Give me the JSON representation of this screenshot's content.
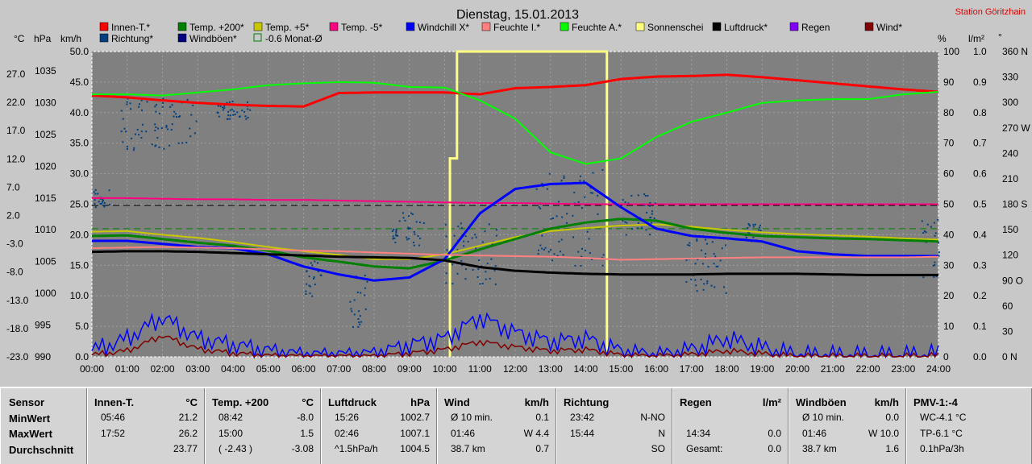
{
  "header": {
    "title": "Dienstag, 15.01.2013",
    "station": "Station Göritzhain"
  },
  "legend": [
    {
      "label": "Innen-T.*",
      "color": "#ff0000"
    },
    {
      "label": "Temp. +200*",
      "color": "#008000"
    },
    {
      "label": "Temp. +5*",
      "color": "#c8c800"
    },
    {
      "label": "Temp. -5*",
      "color": "#ff0080"
    },
    {
      "label": "Windchill X*",
      "color": "#0000ff"
    },
    {
      "label": "Feuchte I.*",
      "color": "#ff8080"
    },
    {
      "label": "Feuchte A.*",
      "color": "#00ff00"
    },
    {
      "label": "Sonnenschei",
      "color": "#ffff80"
    },
    {
      "label": "Luftdruck*",
      "color": "#000000"
    },
    {
      "label": "Regen",
      "color": "#8000ff"
    },
    {
      "label": "Wind*",
      "color": "#800000"
    },
    {
      "label": "Richtung*",
      "color": "#004080"
    },
    {
      "label": "Windböen*",
      "color": "#000080"
    },
    {
      "label": "-0.6 Monat-Ø",
      "color": "#008000",
      "outline": true
    }
  ],
  "axis_units": {
    "temp": "°C",
    "press": "hPa",
    "wind": "km/h",
    "pct": "%",
    "rain": "l/m²",
    "dir": "°"
  },
  "axes": {
    "temp": [
      "27.0",
      "22.0",
      "17.0",
      "12.0",
      "7.0",
      "2.0",
      "-3.0",
      "-8.0",
      "-13.0",
      "-18.0",
      "-23.0"
    ],
    "press": [
      "1035",
      "1030",
      "1025",
      "1020",
      "1015",
      "1010",
      "1005",
      "1000",
      "995",
      "990"
    ],
    "wind": [
      "50.0",
      "45.0",
      "40.0",
      "35.0",
      "30.0",
      "25.0",
      "20.0",
      "15.0",
      "10.0",
      "5.0",
      "0.0"
    ],
    "pct": [
      "100",
      "90",
      "80",
      "70",
      "60",
      "50",
      "40",
      "30",
      "20",
      "10",
      "0"
    ],
    "rain": [
      "1.0",
      "0.9",
      "0.8",
      "0.7",
      "0.6",
      "0.5",
      "0.4",
      "0.3",
      "0.2",
      "0.1",
      "0.0"
    ],
    "dir": [
      "360 N",
      "330",
      "300",
      "270 W",
      "240",
      "210",
      "180 S",
      "150",
      "120",
      "90 O",
      "60",
      "30",
      "0 N"
    ],
    "time": [
      "00:00",
      "01:00",
      "02:00",
      "03:00",
      "04:00",
      "05:00",
      "06:00",
      "07:00",
      "08:00",
      "09:00",
      "10:00",
      "11:00",
      "12:00",
      "13:00",
      "14:00",
      "15:00",
      "16:00",
      "17:00",
      "18:00",
      "19:00",
      "20:00",
      "21:00",
      "22:00",
      "23:00",
      "24:00"
    ]
  },
  "chart_data": {
    "type": "line",
    "title": "Dienstag, 15.01.2013",
    "x_hours": [
      0,
      1,
      2,
      3,
      4,
      5,
      6,
      7,
      8,
      9,
      10,
      11,
      12,
      13,
      14,
      15,
      16,
      17,
      18,
      19,
      20,
      21,
      22,
      23,
      24
    ],
    "ylim_wind_kmh": [
      0,
      50
    ],
    "series": [
      {
        "name": "Innen-T.*",
        "color": "#ff0000",
        "width": 3,
        "values": [
          42.8,
          42.5,
          42.0,
          41.6,
          41.3,
          41.1,
          41.0,
          43.2,
          43.3,
          43.3,
          43.3,
          43.0,
          44.0,
          44.2,
          44.5,
          45.5,
          45.9,
          46.0,
          46.2,
          45.8,
          45.3,
          44.8,
          44.3,
          43.8,
          43.4
        ]
      },
      {
        "name": "Feuchte A.*",
        "color": "#00ff00",
        "width": 2,
        "values": [
          43.0,
          43.0,
          42.8,
          43.3,
          43.8,
          44.5,
          44.8,
          45.0,
          44.9,
          44.2,
          44.1,
          42.0,
          39.0,
          33.5,
          31.6,
          32.5,
          36.0,
          38.5,
          40.0,
          41.6,
          42.0,
          42.2,
          42.2,
          43.0,
          43.4
        ]
      },
      {
        "name": "Temp. -5*",
        "color": "#ff0080",
        "width": 2,
        "values": [
          26.0,
          26.0,
          25.9,
          25.8,
          25.8,
          25.7,
          25.7,
          25.6,
          25.5,
          25.4,
          25.3,
          25.2,
          25.2,
          25.1,
          25.0,
          25.0,
          25.0,
          25.0,
          25.0,
          25.0,
          25.0,
          25.0,
          25.0,
          25.0,
          25.0
        ]
      },
      {
        "name": "Temp. +5*",
        "color": "#c8c800",
        "width": 2,
        "values": [
          20.5,
          20.6,
          20.0,
          19.5,
          18.8,
          18.0,
          17.3,
          16.7,
          16.0,
          16.0,
          16.8,
          18.2,
          19.6,
          20.6,
          21.1,
          21.5,
          21.7,
          21.3,
          20.8,
          20.4,
          20.1,
          19.9,
          19.7,
          19.4,
          19.2
        ]
      },
      {
        "name": "Temp. +200*",
        "color": "#008000",
        "width": 3,
        "values": [
          19.8,
          19.9,
          19.3,
          18.7,
          18.2,
          17.4,
          16.3,
          15.6,
          14.8,
          14.5,
          15.8,
          17.6,
          19.3,
          21.0,
          22.0,
          22.6,
          22.3,
          21.0,
          20.3,
          19.8,
          19.6,
          19.4,
          19.3,
          19.1,
          18.9
        ]
      },
      {
        "name": "Windchill X*",
        "color": "#0000ff",
        "width": 3,
        "values": [
          19.0,
          19.0,
          18.5,
          18.0,
          17.8,
          16.8,
          14.8,
          13.5,
          12.5,
          13.0,
          16.0,
          23.5,
          27.5,
          28.3,
          28.5,
          24.5,
          21.0,
          19.8,
          19.4,
          18.9,
          17.3,
          16.8,
          16.5,
          16.5,
          16.5
        ]
      },
      {
        "name": "Feuchte I.*",
        "color": "#ff8080",
        "width": 2,
        "values": [
          17.8,
          17.9,
          18.0,
          17.9,
          17.8,
          17.6,
          17.4,
          17.3,
          17.1,
          16.9,
          16.7,
          16.6,
          16.5,
          16.4,
          16.2,
          15.9,
          16.0,
          16.1,
          16.2,
          16.3,
          16.3,
          16.3,
          16.3,
          16.3,
          16.4
        ]
      },
      {
        "name": "Luftdruck*",
        "color": "#000000",
        "width": 3,
        "values": [
          17.2,
          17.3,
          17.3,
          17.2,
          17.0,
          16.8,
          16.6,
          16.4,
          16.3,
          16.2,
          15.8,
          14.7,
          14.1,
          13.8,
          13.6,
          13.5,
          13.5,
          13.5,
          13.6,
          13.6,
          13.6,
          13.5,
          13.4,
          13.4,
          13.4
        ]
      },
      {
        "name": "Windböen*",
        "color": "#0000ff",
        "width": 1.5,
        "values": [
          1.0,
          3.0,
          6.5,
          3.0,
          2.0,
          1.0,
          0.3,
          0.3,
          0.5,
          2.0,
          3.0,
          6.5,
          4.0,
          2.5,
          3.0,
          1.0,
          0.2,
          1.2,
          3.0,
          1.5,
          0.3,
          0.3,
          0.2,
          0.2,
          0.5
        ]
      },
      {
        "name": "Wind*",
        "color": "#800000",
        "width": 1.5,
        "values": [
          0.3,
          1.0,
          3.5,
          1.3,
          0.6,
          0.2,
          0.1,
          0.1,
          0.1,
          0.6,
          1.2,
          2.5,
          1.6,
          1.0,
          1.2,
          0.3,
          0.1,
          0.4,
          1.0,
          0.5,
          0.1,
          0.1,
          0.1,
          0.1,
          0.2
        ]
      }
    ],
    "sunshine": {
      "name": "Sonnenschei",
      "color": "#ffff80",
      "start_hour": 10.35,
      "end_hour": 14.6,
      "value": 50,
      "pre_value": 32.5,
      "pre_start": 10.15
    },
    "reference_lines": [
      {
        "name": "-0.6 Monat-Ø",
        "value": 21.0,
        "color": "#008000",
        "dash": true
      },
      {
        "value": 24.8,
        "color": "#000000",
        "dash": true
      }
    ],
    "direction_scatter": {
      "name": "Richtung*",
      "clusters": [
        {
          "x": [
            0.0,
            0.5
          ],
          "y": [
            24.5,
            27.5
          ]
        },
        {
          "x": [
            0.8,
            3.0
          ],
          "y": [
            34.0,
            42.5
          ]
        },
        {
          "x": [
            3.5,
            4.5
          ],
          "y": [
            39.0,
            42.0
          ]
        },
        {
          "x": [
            6.0,
            6.5
          ],
          "y": [
            9.5,
            16.0
          ]
        },
        {
          "x": [
            7.3,
            7.8
          ],
          "y": [
            5.0,
            13.5
          ]
        },
        {
          "x": [
            8.5,
            9.5
          ],
          "y": [
            18.0,
            24.0
          ]
        },
        {
          "x": [
            10.0,
            11.5
          ],
          "y": [
            12.0,
            22.0
          ]
        },
        {
          "x": [
            12.5,
            14.5
          ],
          "y": [
            15.0,
            31.0
          ]
        },
        {
          "x": [
            15.0,
            16.0
          ],
          "y": [
            20.0,
            27.0
          ]
        },
        {
          "x": [
            16.8,
            18.0
          ],
          "y": [
            10.5,
            19.5
          ]
        },
        {
          "x": [
            18.5,
            19.0
          ],
          "y": [
            19.0,
            22.0
          ]
        },
        {
          "x": [
            23.5,
            24.0
          ],
          "y": [
            13.0,
            23.0
          ]
        }
      ]
    }
  },
  "table": {
    "row_labels": [
      "Sensor",
      "MinWert",
      "MaxWert",
      "Durchschnitt"
    ],
    "columns": [
      {
        "title": "Innen-T.",
        "unit": "°C",
        "rows": [
          [
            "05:46",
            "21.2"
          ],
          [
            "17:52",
            "26.2"
          ],
          [
            "",
            "23.77"
          ]
        ]
      },
      {
        "title": "Temp. +200",
        "unit": "°C",
        "rows": [
          [
            "08:42",
            "-8.0"
          ],
          [
            "15:00",
            "1.5"
          ],
          [
            "( -2.43 )",
            "-3.08"
          ]
        ]
      },
      {
        "title": "Luftdruck",
        "unit": "hPa",
        "rows": [
          [
            "15:26",
            "1002.7"
          ],
          [
            "02:46",
            "1007.1"
          ],
          [
            "^1.5hPa/h",
            "1004.5"
          ]
        ]
      },
      {
        "title": "Wind",
        "unit": "km/h",
        "rows": [
          [
            "Ø 10 min.",
            "0.1"
          ],
          [
            "01:46",
            "W 4.4"
          ],
          [
            "38.7 km",
            "0.7"
          ]
        ]
      },
      {
        "title": "Richtung",
        "unit": "",
        "rows": [
          [
            "23:42",
            "N-NO"
          ],
          [
            "15:44",
            "N"
          ],
          [
            "",
            "SO"
          ]
        ]
      },
      {
        "title": "Regen",
        "unit": "l/m²",
        "rows": [
          [
            "",
            ""
          ],
          [
            "14:34",
            "0.0"
          ],
          [
            "Gesamt:",
            "0.0"
          ]
        ]
      },
      {
        "title": "Windböen",
        "unit": "km/h",
        "rows": [
          [
            "Ø 10 min.",
            "0.0"
          ],
          [
            "01:46",
            "W 10.0"
          ],
          [
            "38.7 km",
            "1.6"
          ]
        ]
      },
      {
        "title": "PMV-1:-4",
        "unit": "",
        "rows": [
          [
            "WC-4.1 °C",
            ""
          ],
          [
            "TP-6.1 °C",
            ""
          ],
          [
            "0.1hPa/3h",
            ""
          ]
        ]
      }
    ]
  }
}
